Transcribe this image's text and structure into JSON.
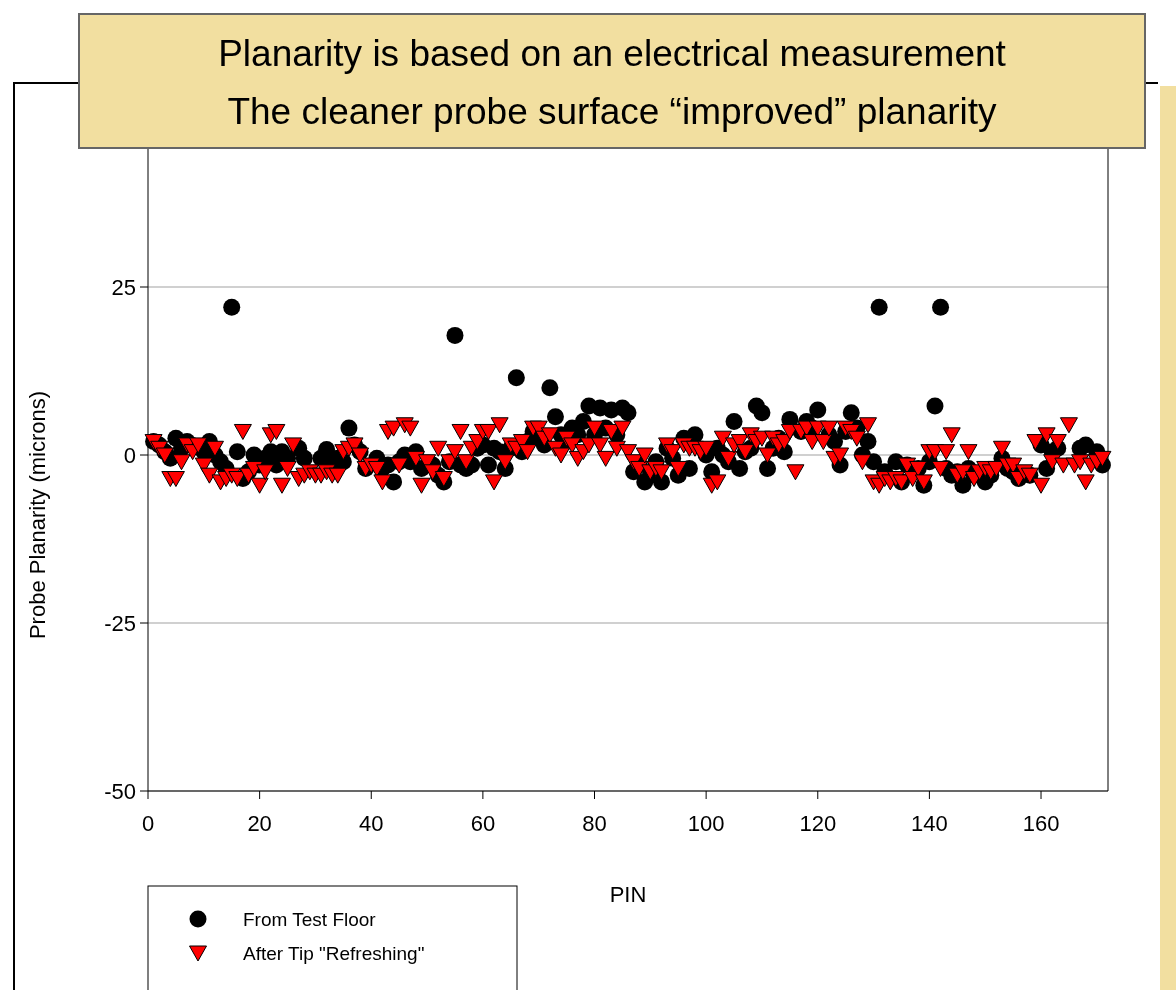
{
  "chart_data": {
    "type": "scatter",
    "title": "Planarity is based on an electrical measurement",
    "subtitle": "The cleaner probe surface “improved” planarity",
    "xlabel": "PIN",
    "ylabel": "Probe Planarity (microns)",
    "x": [
      1,
      2,
      3,
      4,
      5,
      6,
      7,
      8,
      9,
      10,
      11,
      12,
      13,
      14,
      15,
      16,
      17,
      18,
      19,
      20,
      21,
      22,
      23,
      24,
      25,
      26,
      27,
      28,
      29,
      30,
      31,
      32,
      33,
      34,
      35,
      36,
      37,
      38,
      39,
      40,
      41,
      42,
      43,
      44,
      45,
      46,
      47,
      48,
      49,
      50,
      51,
      52,
      53,
      54,
      55,
      56,
      57,
      58,
      59,
      60,
      61,
      62,
      63,
      64,
      65,
      66,
      67,
      68,
      69,
      70,
      71,
      72,
      73,
      74,
      75,
      76,
      77,
      78,
      79,
      80,
      81,
      82,
      83,
      84,
      85,
      86,
      87,
      88,
      89,
      90,
      91,
      92,
      93,
      94,
      95,
      96,
      97,
      98,
      99,
      100,
      101,
      102,
      103,
      104,
      105,
      106,
      107,
      108,
      109,
      110,
      111,
      112,
      113,
      114,
      115,
      116,
      117,
      118,
      119,
      120,
      121,
      122,
      123,
      124,
      125,
      126,
      127,
      128,
      129,
      130,
      131,
      132,
      133,
      134,
      135,
      136,
      137,
      138,
      139,
      140,
      141,
      142,
      143,
      144,
      145,
      146,
      147,
      148,
      149,
      150,
      151,
      152,
      153,
      154,
      155,
      156,
      157,
      158,
      159,
      160,
      161,
      162,
      163,
      164,
      165,
      166,
      167,
      168,
      169,
      170,
      171
    ],
    "series": [
      {
        "name": "From Test Floor",
        "color": "#000000",
        "marker": "circle",
        "values": [
          2,
          1.5,
          0.5,
          -0.5,
          2.5,
          1,
          2,
          null,
          null,
          0.5,
          2,
          0,
          -1,
          -2,
          22,
          0.5,
          -3.5,
          -2.5,
          0,
          -1.5,
          -0.5,
          0.5,
          -1.5,
          0.5,
          -0.5,
          null,
          1,
          -0.5,
          null,
          null,
          -0.5,
          0.8,
          -1,
          -0.5,
          -1,
          4,
          1.5,
          0.5,
          -2,
          null,
          -0.5,
          -2,
          -1.5,
          -4,
          -1,
          0,
          -1,
          0.5,
          -2,
          null,
          -1.5,
          -3,
          -4,
          -1,
          17.8,
          -1.5,
          -2,
          -1.5,
          1,
          1.5,
          -1.5,
          1,
          0.5,
          -2,
          1,
          11.5,
          0.5,
          2,
          3.5,
          2.5,
          1.5,
          10,
          5.7,
          3,
          2,
          4,
          3,
          5,
          7.3,
          3,
          7,
          4,
          6.7,
          3,
          7,
          6.3,
          -2.5,
          -1.5,
          -4,
          -3,
          -1,
          -4,
          1,
          -0.5,
          -3,
          2.5,
          -2,
          3,
          null,
          0,
          -2.5,
          1,
          0,
          -1,
          5,
          -2,
          0.5,
          1,
          7.3,
          6.3,
          -2,
          1,
          2.5,
          0.5,
          5.3,
          null,
          3.5,
          5,
          4,
          6.7,
          null,
          3,
          2,
          -1.5,
          3.5,
          6.3,
          4,
          0,
          2,
          -1,
          22,
          -2.5,
          null,
          -1,
          -4,
          -1.5,
          null,
          -2,
          -4.5,
          -1,
          7.3,
          22,
          -2,
          -3,
          -2.5,
          -4.5,
          -2,
          -3,
          null,
          -4,
          -3,
          null,
          -0.5,
          -2,
          -2.5,
          -3.5,
          null,
          -3,
          null,
          1.5,
          -2,
          0.5,
          1,
          null,
          null,
          null,
          1,
          1.5,
          null,
          0.5,
          -1.5
        ]
      },
      {
        "name": "After Tip \"Refreshing\"",
        "color": "#ff0000",
        "marker": "triangle",
        "values": [
          2,
          1,
          0,
          -3.5,
          -3.5,
          -1,
          1.5,
          0.5,
          1.5,
          -1.5,
          -3,
          1,
          -4,
          -3.5,
          -3,
          -3.5,
          3.5,
          -3,
          -2,
          -4.5,
          -2.5,
          3,
          3.5,
          -4.5,
          -2,
          1.5,
          -3.5,
          -3,
          -2.5,
          -3,
          -3,
          -2.5,
          -3,
          -3,
          0.5,
          1,
          1.5,
          0,
          -2,
          -1.5,
          -2,
          -4,
          3.5,
          4,
          -1.5,
          4.5,
          4,
          -0.5,
          -4.5,
          -1,
          -2.5,
          1,
          -3.5,
          -1,
          0.5,
          3.5,
          -1,
          1,
          2,
          3.5,
          3.5,
          -4,
          4.5,
          -1,
          1.5,
          1,
          2,
          0.5,
          4,
          4,
          2.5,
          3,
          1,
          0,
          2.5,
          1.5,
          -0.5,
          0.5,
          1.5,
          4,
          1.5,
          -0.5,
          3.5,
          1,
          4,
          0.5,
          -1,
          -2,
          0,
          -2.5,
          -2,
          -2.5,
          1.5,
          0.5,
          -2,
          1.5,
          1,
          1,
          0.5,
          1,
          -4.5,
          -4,
          2.5,
          -0.5,
          1.5,
          2,
          0.5,
          3,
          2,
          2.5,
          0,
          2.5,
          1.5,
          2,
          3.5,
          -2.5,
          3.5,
          4,
          2,
          4,
          2,
          4,
          -0.5,
          0,
          4,
          3.5,
          2.5,
          -1,
          4.5,
          -4,
          -4.5,
          -3.5,
          -4,
          -3.5,
          -4,
          -1.5,
          -3.5,
          -2,
          -4,
          0.5,
          0.5,
          -2,
          0.5,
          3,
          -3,
          -2.5,
          0.5,
          -3.5,
          -2.5,
          -2,
          -2.5,
          -2,
          1,
          -1.5,
          -1.5,
          -3.5,
          -2.5,
          -3,
          2,
          -4.5,
          3,
          -1,
          2,
          -1.5,
          4.5,
          -1.5,
          -1,
          -4,
          -1.5,
          -1,
          -0.5
        ]
      }
    ],
    "xlim": [
      0,
      172
    ],
    "xticks": [
      0,
      20,
      40,
      60,
      80,
      100,
      120,
      140,
      160
    ],
    "ylim": [
      -50,
      50
    ],
    "yticks": [
      -50,
      -25,
      0,
      25
    ],
    "grid": "y",
    "legend": "bottom left"
  }
}
